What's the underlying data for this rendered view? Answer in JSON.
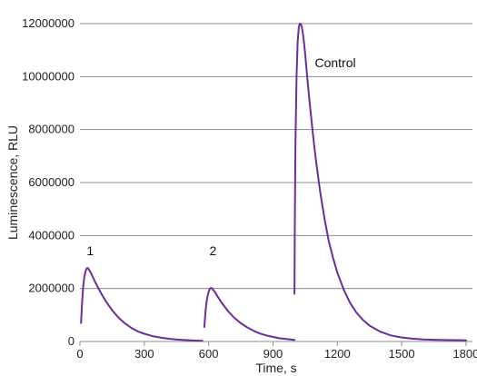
{
  "chart_data": {
    "type": "line",
    "title": "",
    "xlabel": "Time, s",
    "ylabel": "Luminescence, RLU",
    "xlim": [
      0,
      1830
    ],
    "ylim": [
      0,
      12000000
    ],
    "xticks": [
      0,
      300,
      600,
      900,
      1200,
      1500,
      1800
    ],
    "xtick_labels": [
      "0",
      "300",
      "600",
      "900",
      "1200",
      "1500",
      "1800"
    ],
    "yticks": [
      0,
      2000000,
      4000000,
      6000000,
      8000000,
      10000000,
      12000000
    ],
    "ytick_labels": [
      "0",
      "2000000",
      "4000000",
      "6000000",
      "8000000",
      "10000000",
      "12000000"
    ],
    "grid": {
      "horizontal": true,
      "vertical": false
    },
    "legend": "none",
    "line_color": "#6a2c9e",
    "series": [
      {
        "x": [
          5,
          10,
          15,
          20,
          25,
          30,
          35,
          40,
          50,
          60,
          75,
          90,
          105,
          120,
          150,
          180,
          210,
          240,
          270,
          300,
          340,
          380,
          420,
          460,
          500,
          540,
          570
        ],
        "y": [
          700000,
          1500000,
          2050000,
          2400000,
          2620000,
          2740000,
          2780000,
          2740000,
          2600000,
          2430000,
          2180000,
          1950000,
          1730000,
          1530000,
          1180000,
          900000,
          680000,
          510000,
          380000,
          290000,
          200000,
          140000,
          100000,
          70000,
          50000,
          35000,
          25000
        ]
      },
      {
        "x": [
          580,
          585,
          590,
          595,
          600,
          605,
          610,
          615,
          620,
          630,
          640,
          660,
          690,
          720,
          750,
          780,
          810,
          840,
          870,
          900,
          930,
          960,
          990,
          1000
        ],
        "y": [
          550000,
          1100000,
          1480000,
          1720000,
          1880000,
          1980000,
          2020000,
          2010000,
          1960000,
          1860000,
          1720000,
          1470000,
          1150000,
          890000,
          690000,
          530000,
          400000,
          300000,
          225000,
          170000,
          125000,
          95000,
          70000,
          60000
        ]
      },
      {
        "x": [
          1000,
          1002,
          1005,
          1010,
          1015,
          1020,
          1025,
          1030,
          1035,
          1040,
          1045,
          1050,
          1060,
          1070,
          1080,
          1090,
          1100,
          1120,
          1140,
          1160,
          1180,
          1200,
          1230,
          1260,
          1290,
          1320,
          1350,
          1400,
          1450,
          1500,
          1550,
          1600,
          1650,
          1700,
          1750,
          1800
        ],
        "y": [
          1800000,
          4500000,
          7500000,
          10000000,
          11300000,
          11850000,
          12000000,
          11980000,
          11850000,
          11600000,
          11250000,
          10850000,
          9950000,
          9100000,
          8300000,
          7550000,
          6850000,
          5650000,
          4650000,
          3800000,
          3150000,
          2600000,
          1950000,
          1450000,
          1080000,
          810000,
          600000,
          370000,
          230000,
          150000,
          105000,
          80000,
          65000,
          55000,
          50000,
          45000
        ]
      }
    ],
    "annotations": [
      {
        "text": "1",
        "x": 48,
        "y": 3250000
      },
      {
        "text": "2",
        "x": 620,
        "y": 3250000
      },
      {
        "text": "Control",
        "x": 1095,
        "y": 10350000
      }
    ]
  }
}
